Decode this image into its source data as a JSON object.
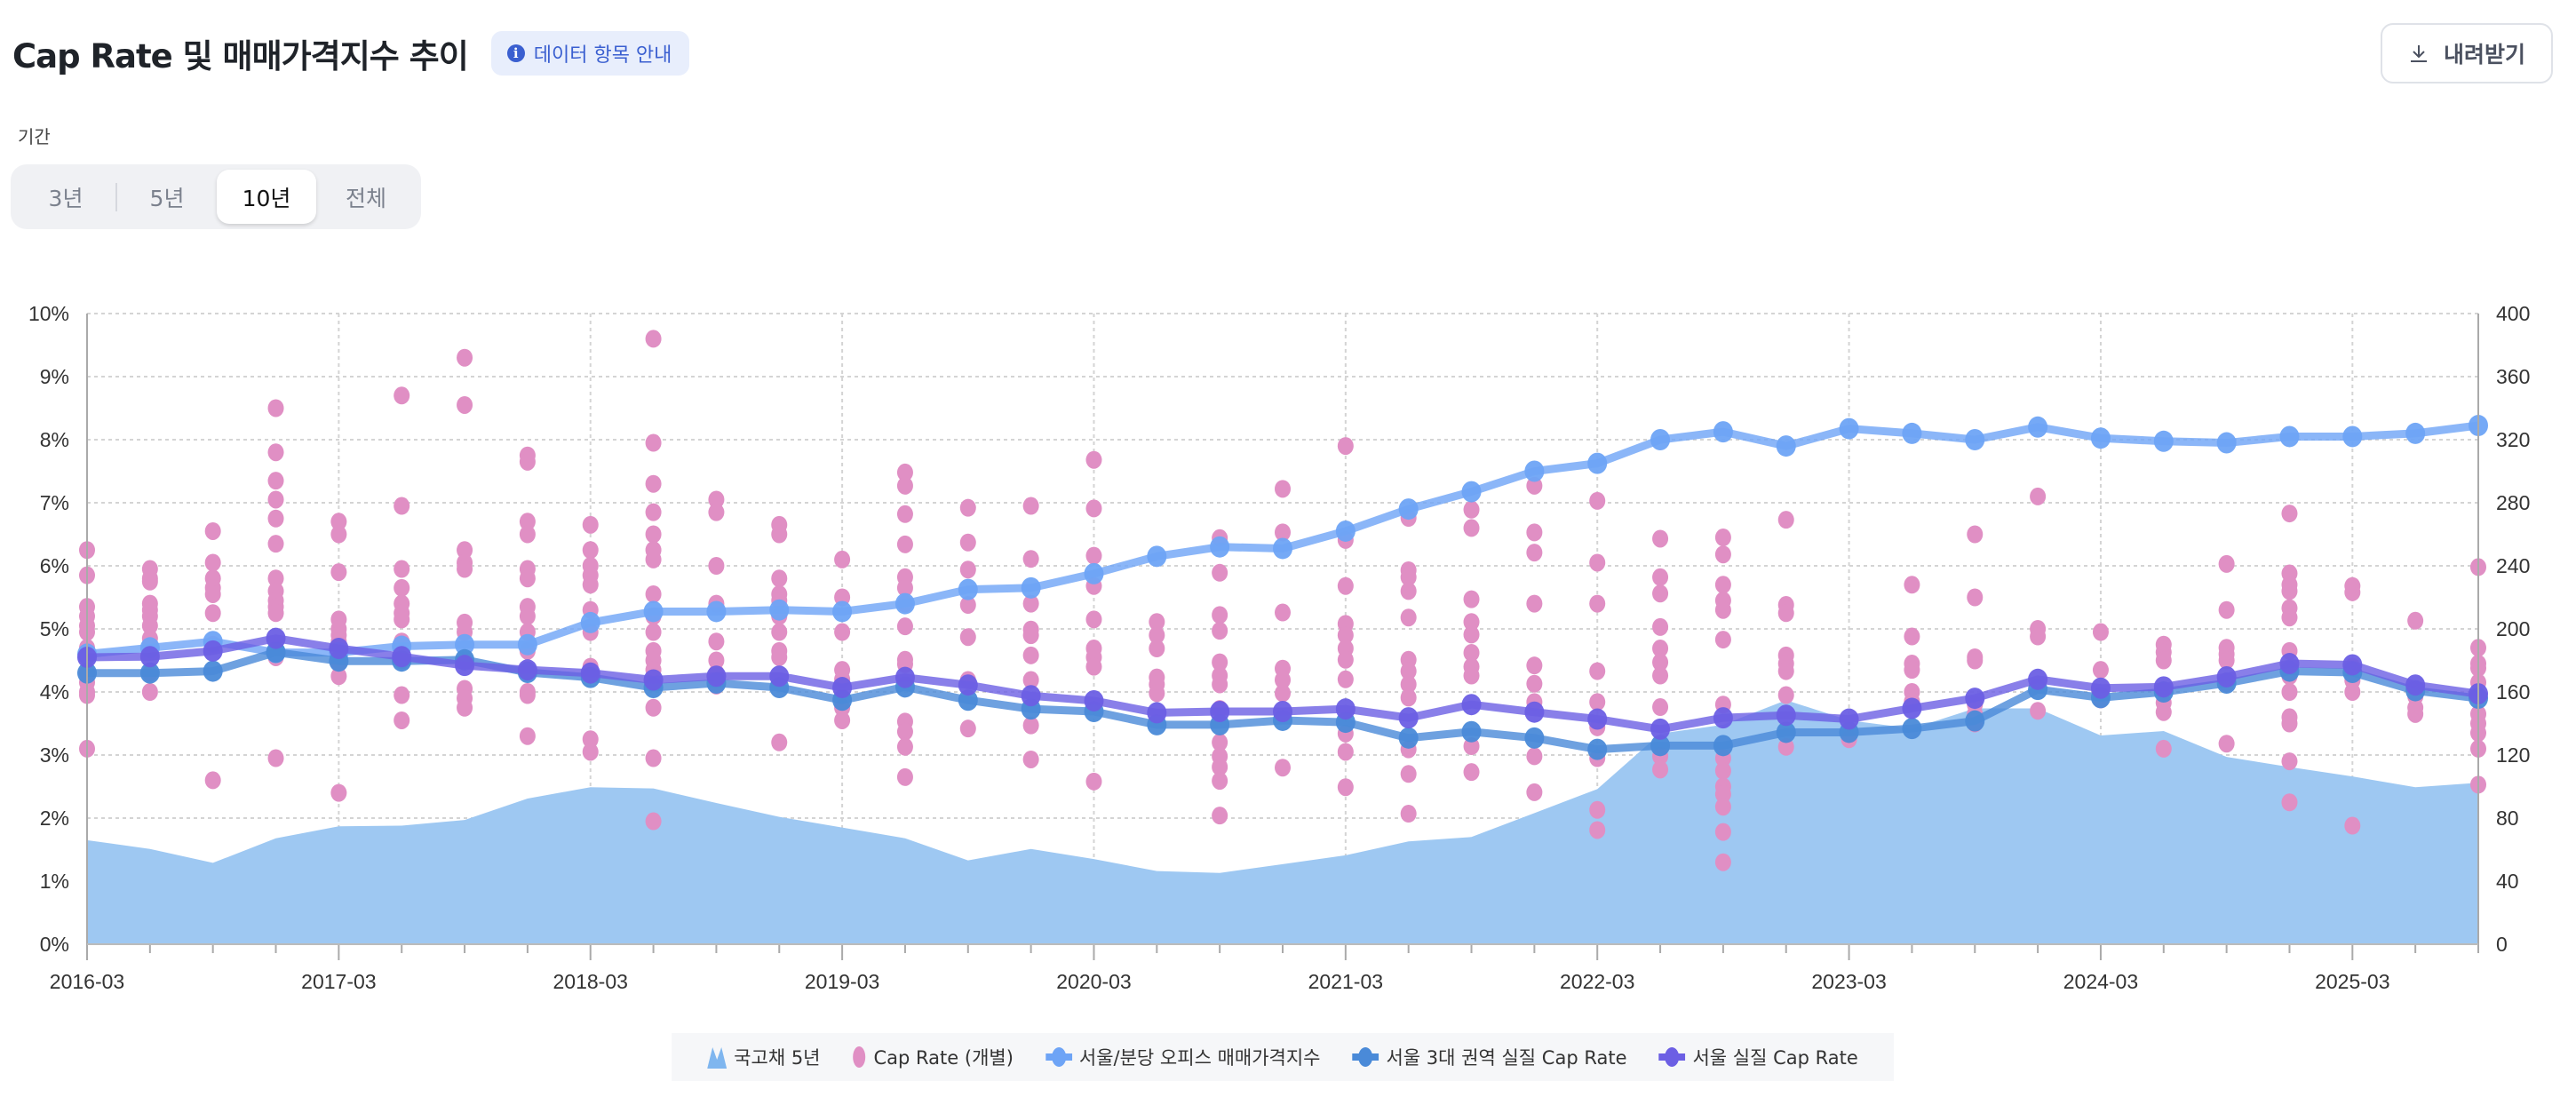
{
  "header": {
    "title": "Cap Rate 및 매매가격지수 추이",
    "info_badge": "데이터 항목 안내",
    "download_label": "내려받기"
  },
  "period": {
    "label": "기간",
    "options": [
      "3년",
      "5년",
      "10년",
      "전체"
    ],
    "selected": "10년"
  },
  "colors": {
    "bond_area": "#9ec8f2",
    "cap_rate_dots": "#e08fc4",
    "price_index": "#6ea4f6",
    "seoul_3_region": "#4a8ad8",
    "seoul": "#6c5fe4"
  },
  "chart_data": {
    "type": "line",
    "title": "Cap Rate 및 매매가격지수 추이",
    "x": [
      "2016-03",
      "2016-06",
      "2016-09",
      "2016-12",
      "2017-03",
      "2017-06",
      "2017-09",
      "2017-12",
      "2018-03",
      "2018-06",
      "2018-09",
      "2018-12",
      "2019-03",
      "2019-06",
      "2019-09",
      "2019-12",
      "2020-03",
      "2020-06",
      "2020-09",
      "2020-12",
      "2021-03",
      "2021-06",
      "2021-09",
      "2021-12",
      "2022-03",
      "2022-06",
      "2022-09",
      "2022-12",
      "2023-03",
      "2023-06",
      "2023-09",
      "2023-12",
      "2024-03",
      "2024-06",
      "2024-09",
      "2024-12",
      "2025-03",
      "2025-06",
      "2025-09"
    ],
    "x_tick_labels": [
      "2016-03",
      "2017-03",
      "2018-03",
      "2019-03",
      "2020-03",
      "2021-03",
      "2022-03",
      "2023-03",
      "2024-03",
      "2025-03"
    ],
    "y_left": {
      "label": "",
      "ticks": [
        "0%",
        "1%",
        "2%",
        "3%",
        "4%",
        "5%",
        "6%",
        "7%",
        "8%",
        "9%",
        "10%"
      ],
      "range": [
        0,
        10
      ]
    },
    "y_right": {
      "label": "",
      "ticks": [
        "0",
        "40",
        "80",
        "120",
        "160",
        "200",
        "240",
        "280",
        "320",
        "360",
        "400"
      ],
      "range": [
        0,
        400
      ]
    },
    "grid": true,
    "legend_position": "bottom-center",
    "legend": [
      "국고채 5년",
      "Cap Rate (개별)",
      "서울/분당 오피스 매매가격지수",
      "서울 3대 권역 실질 Cap Rate",
      "서울 실질 Cap Rate"
    ],
    "series": [
      {
        "name": "국고채 5년",
        "type": "area",
        "axis": "left",
        "values": [
          1.65,
          1.51,
          1.29,
          1.68,
          1.87,
          1.88,
          1.97,
          2.31,
          2.49,
          2.47,
          2.24,
          2.02,
          1.85,
          1.68,
          1.33,
          1.51,
          1.35,
          1.16,
          1.13,
          1.27,
          1.41,
          1.63,
          1.7,
          2.08,
          2.46,
          3.34,
          3.48,
          3.87,
          3.55,
          3.42,
          3.74,
          3.74,
          3.31,
          3.38,
          2.97,
          2.81,
          2.66,
          2.49,
          2.56
        ]
      },
      {
        "name": "서울/분당 오피스 매매가격지수",
        "type": "line",
        "axis": "right",
        "values": [
          184,
          188,
          192,
          185,
          185,
          189,
          190,
          190,
          204,
          211,
          211,
          212,
          211,
          216,
          225,
          226,
          235,
          246,
          252,
          251,
          262,
          276,
          287,
          300,
          305,
          320,
          325,
          316,
          327,
          324,
          320,
          328,
          321,
          319,
          318,
          322,
          322,
          324,
          329
        ]
      },
      {
        "name": "서울 3대 권역 실질 Cap Rate",
        "type": "line",
        "axis": "left",
        "values": [
          4.3,
          4.3,
          4.33,
          4.63,
          4.49,
          4.49,
          4.51,
          4.31,
          4.23,
          4.07,
          4.14,
          4.07,
          3.87,
          4.08,
          3.87,
          3.73,
          3.69,
          3.48,
          3.48,
          3.55,
          3.52,
          3.27,
          3.37,
          3.27,
          3.09,
          3.15,
          3.15,
          3.36,
          3.36,
          3.42,
          3.54,
          4.04,
          3.91,
          4.0,
          4.14,
          4.33,
          4.31,
          4.02,
          3.9
        ]
      },
      {
        "name": "서울 실질 Cap Rate",
        "type": "line",
        "axis": "left",
        "values": [
          4.55,
          4.56,
          4.65,
          4.85,
          4.69,
          4.56,
          4.42,
          4.35,
          4.3,
          4.19,
          4.25,
          4.25,
          4.07,
          4.23,
          4.11,
          3.94,
          3.86,
          3.67,
          3.69,
          3.69,
          3.73,
          3.59,
          3.8,
          3.68,
          3.57,
          3.41,
          3.59,
          3.63,
          3.57,
          3.74,
          3.9,
          4.2,
          4.06,
          4.08,
          4.24,
          4.45,
          4.43,
          4.11,
          3.97
        ]
      },
      {
        "name": "Cap Rate (개별)",
        "type": "scatter",
        "axis": "left",
        "values": [
          [
            6.25,
            5.85,
            5.35,
            5.2,
            5.05,
            4.95,
            4.7,
            4.55,
            4.3,
            4.15,
            4.0,
            3.95,
            3.1
          ],
          [
            5.95,
            5.8,
            5.75,
            5.4,
            5.3,
            5.2,
            5.05,
            4.85,
            4.75,
            4.3,
            4.0
          ],
          [
            6.55,
            6.05,
            5.8,
            5.65,
            5.55,
            5.25,
            4.75,
            2.6
          ],
          [
            8.5,
            7.8,
            7.35,
            7.05,
            6.75,
            6.35,
            5.8,
            5.6,
            5.45,
            5.35,
            5.25,
            4.55,
            2.95
          ],
          [
            6.7,
            6.5,
            5.9,
            5.15,
            5.0,
            4.9,
            4.8,
            4.45,
            4.25,
            2.4
          ],
          [
            8.7,
            6.95,
            5.95,
            5.65,
            5.4,
            5.25,
            5.15,
            4.8,
            4.5,
            3.95,
            3.55
          ],
          [
            9.3,
            8.55,
            6.25,
            6.05,
            5.95,
            5.1,
            4.95,
            4.5,
            4.05,
            3.9,
            3.75
          ],
          [
            7.75,
            7.65,
            6.7,
            6.5,
            5.95,
            5.8,
            5.35,
            5.2,
            4.95,
            4.65,
            4.35,
            4.0,
            3.95,
            3.3
          ],
          [
            6.65,
            6.25,
            6.0,
            5.85,
            5.7,
            5.3,
            4.95,
            4.4,
            4.3,
            3.25,
            3.05
          ],
          [
            9.6,
            7.95,
            7.3,
            6.85,
            6.5,
            6.25,
            6.1,
            5.55,
            5.2,
            4.95,
            4.65,
            4.5,
            4.35,
            3.75,
            2.95,
            1.95
          ],
          [
            7.05,
            6.85,
            6.0,
            5.4,
            4.8,
            4.5,
            4.3,
            4.1
          ],
          [
            6.65,
            6.5,
            5.8,
            5.55,
            5.45,
            5.2,
            4.95,
            4.65,
            4.55,
            3.2
          ],
          [
            6.1,
            5.5,
            4.95,
            4.35,
            4.2,
            3.75,
            3.55
          ],
          [
            7.48,
            7.27,
            6.82,
            6.34,
            5.82,
            5.65,
            5.4,
            5.04,
            4.51,
            4.44,
            3.53,
            3.37,
            3.13,
            2.65
          ],
          [
            6.92,
            6.37,
            5.94,
            5.38,
            4.87,
            4.19,
            3.42
          ],
          [
            6.95,
            6.11,
            5.4,
            4.99,
            4.9,
            4.58,
            4.19,
            3.47,
            2.93
          ],
          [
            7.68,
            6.91,
            6.16,
            5.68,
            5.15,
            4.69,
            4.55,
            4.4,
            2.58
          ],
          [
            5.11,
            4.9,
            4.69,
            4.23,
            4.12,
            3.98
          ],
          [
            6.44,
            5.89,
            5.22,
            4.97,
            4.47,
            4.26,
            4.12,
            3.73,
            3.2,
            2.98,
            2.81,
            2.59,
            2.04
          ],
          [
            7.22,
            6.53,
            5.26,
            4.37,
            4.19,
            3.98,
            2.8
          ],
          [
            7.9,
            6.41,
            5.68,
            5.08,
            4.9,
            4.69,
            4.51,
            4.2,
            3.34,
            3.05,
            2.49
          ],
          [
            6.76,
            5.93,
            5.82,
            5.6,
            5.18,
            4.51,
            4.33,
            4.12,
            3.91,
            3.09,
            2.7,
            2.07
          ],
          [
            6.89,
            6.6,
            5.47,
            5.11,
            4.91,
            4.62,
            4.4,
            4.26,
            3.14,
            2.73
          ],
          [
            7.27,
            6.53,
            6.21,
            5.4,
            4.42,
            4.13,
            3.84,
            2.98,
            2.41
          ],
          [
            7.03,
            6.05,
            5.4,
            4.33,
            3.84,
            3.44,
            2.95,
            2.13,
            1.81
          ],
          [
            6.43,
            5.82,
            5.56,
            5.03,
            4.69,
            4.47,
            4.26,
            3.76,
            2.98,
            2.77
          ],
          [
            6.45,
            6.18,
            5.7,
            5.45,
            5.3,
            4.83,
            3.8,
            2.95,
            2.75,
            2.5,
            2.38,
            2.18,
            1.78,
            1.3
          ],
          [
            6.73,
            5.38,
            5.25,
            4.58,
            4.45,
            4.33,
            3.95,
            3.13
          ],
          [
            3.25
          ],
          [
            5.7,
            4.88,
            4.45,
            4.35,
            4.0,
            3.85
          ],
          [
            6.5,
            5.5,
            4.55,
            4.5,
            3.8,
            3.65,
            3.5
          ],
          [
            7.1,
            5.0,
            4.88,
            3.7
          ],
          [
            4.95,
            4.35,
            3.88
          ],
          [
            4.75,
            4.63,
            4.5,
            3.83,
            3.68,
            3.1
          ],
          [
            6.03,
            5.3,
            4.7,
            4.6,
            4.5,
            4.13,
            3.18
          ],
          [
            6.83,
            5.88,
            5.7,
            5.6,
            5.33,
            5.18,
            4.65,
            4.25,
            4.0,
            3.6,
            3.5,
            2.9,
            2.25
          ],
          [
            5.68,
            5.58,
            4.4,
            4.18,
            4.0,
            1.88
          ],
          [
            5.13,
            3.93,
            3.75,
            3.65
          ],
          [
            5.98,
            4.7,
            4.45,
            4.38,
            4.15,
            3.65,
            3.5,
            3.35,
            3.1,
            2.53
          ]
        ]
      }
    ]
  }
}
